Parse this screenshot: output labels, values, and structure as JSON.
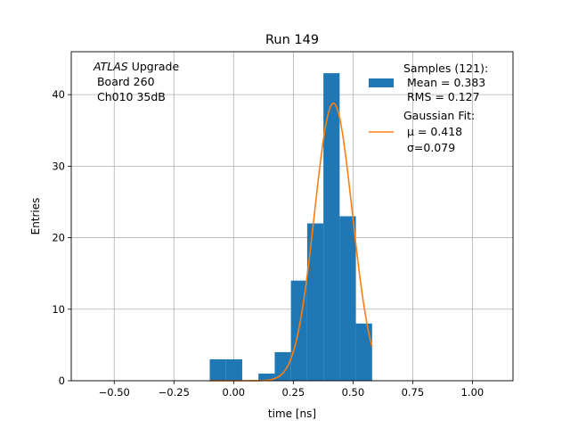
{
  "chart_data": {
    "type": "bar",
    "title": "Run 149",
    "xlabel": "time [ns]",
    "ylabel": "Entries",
    "xlim": [
      -0.68,
      1.17
    ],
    "ylim": [
      0,
      46
    ],
    "grid": true,
    "x_ticks": [
      -0.5,
      -0.25,
      0.0,
      0.25,
      0.5,
      0.75,
      1.0
    ],
    "x_tick_labels": [
      "−0.50",
      "−0.25",
      "0.00",
      "0.25",
      "0.50",
      "0.75",
      "1.00"
    ],
    "y_ticks": [
      0,
      10,
      20,
      30,
      40
    ],
    "y_tick_labels": [
      "0",
      "10",
      "20",
      "30",
      "40"
    ],
    "histogram": {
      "bin_edges": [
        -0.1,
        -0.032,
        0.036,
        0.104,
        0.172,
        0.24,
        0.308,
        0.376,
        0.444,
        0.512,
        0.58
      ],
      "counts": [
        3,
        3,
        0,
        1,
        4,
        14,
        22,
        43,
        23,
        8
      ],
      "color": "#1f77b4"
    },
    "fit": {
      "type": "gaussian",
      "amplitude": 38.8,
      "mu": 0.418,
      "sigma": 0.079,
      "x_range": [
        -0.1,
        0.58
      ],
      "color": "#ff7f0e"
    },
    "annotation": {
      "italic": "ATLAS",
      "line1_rest": " Upgrade",
      "line2": " Board 260",
      "line3": " Ch010 35dB"
    },
    "legend": {
      "placement": "top-right",
      "entries": [
        {
          "series": "histogram",
          "lines": [
            "Samples (121):",
            " Mean = 0.383",
            " RMS = 0.127"
          ]
        },
        {
          "series": "fit",
          "lines": [
            "Gaussian Fit:",
            " μ = 0.418",
            " σ=0.079"
          ]
        }
      ]
    },
    "colors": {
      "bar": "#1f77b4",
      "line": "#ff7f0e",
      "grid": "#b0b0b0"
    }
  }
}
